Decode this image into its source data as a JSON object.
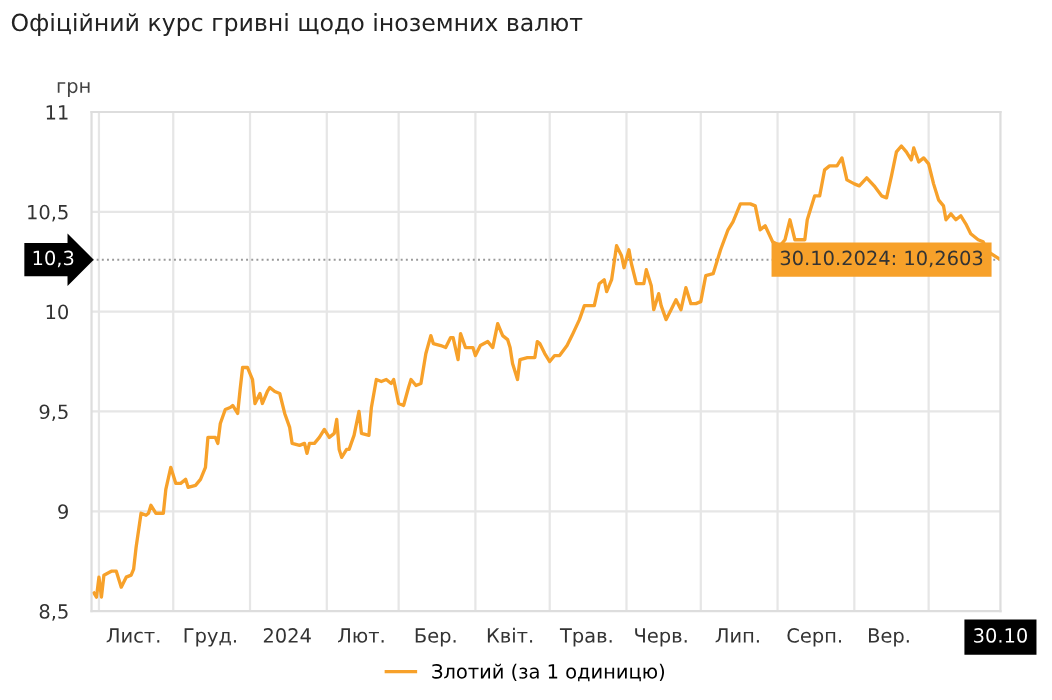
{
  "chart_data": {
    "type": "line",
    "title": "Офіційний курс гривні щодо іноземних валют",
    "ylabel": "грн",
    "x": [
      "2023-10-30",
      "2023-10-31",
      "2023-11-01",
      "2023-11-02",
      "2023-11-03",
      "2023-11-06",
      "2023-11-08",
      "2023-11-10",
      "2023-11-12",
      "2023-11-14",
      "2023-11-15",
      "2023-11-16",
      "2023-11-18",
      "2023-11-20",
      "2023-11-21",
      "2023-11-22",
      "2023-11-24",
      "2023-11-27",
      "2023-11-28",
      "2023-11-30",
      "2023-12-02",
      "2023-12-04",
      "2023-12-06",
      "2023-12-07",
      "2023-12-10",
      "2023-12-12",
      "2023-12-14",
      "2023-12-15",
      "2023-12-18",
      "2023-12-19",
      "2023-12-20",
      "2023-12-22",
      "2023-12-24",
      "2023-12-25",
      "2023-12-27",
      "2023-12-28",
      "2023-12-29",
      "2023-12-31",
      "2024-01-02",
      "2024-01-03",
      "2024-01-05",
      "2024-01-06",
      "2024-01-08",
      "2024-01-09",
      "2024-01-11",
      "2024-01-13",
      "2024-01-15",
      "2024-01-17",
      "2024-01-18",
      "2024-01-21",
      "2024-01-23",
      "2024-01-24",
      "2024-01-25",
      "2024-01-27",
      "2024-01-29",
      "2024-01-31",
      "2024-02-02",
      "2024-02-04",
      "2024-02-05",
      "2024-02-06",
      "2024-02-07",
      "2024-02-09",
      "2024-02-10",
      "2024-02-12",
      "2024-02-14",
      "2024-02-15",
      "2024-02-18",
      "2024-02-19",
      "2024-02-21",
      "2024-02-23",
      "2024-02-25",
      "2024-02-27",
      "2024-02-28",
      "2024-03-01",
      "2024-03-03",
      "2024-03-05",
      "2024-03-06",
      "2024-03-08",
      "2024-03-10",
      "2024-03-12",
      "2024-03-14",
      "2024-03-15",
      "2024-03-18",
      "2024-03-20",
      "2024-03-22",
      "2024-03-23",
      "2024-03-25",
      "2024-03-26",
      "2024-03-28",
      "2024-03-31",
      "2024-04-01",
      "2024-04-03",
      "2024-04-06",
      "2024-04-08",
      "2024-04-10",
      "2024-04-12",
      "2024-04-14",
      "2024-04-15",
      "2024-04-16",
      "2024-04-18",
      "2024-04-19",
      "2024-04-22",
      "2024-04-25",
      "2024-04-26",
      "2024-04-27",
      "2024-04-29",
      "2024-05-01",
      "2024-05-03",
      "2024-05-05",
      "2024-05-08",
      "2024-05-10",
      "2024-05-13",
      "2024-05-15",
      "2024-05-19",
      "2024-05-21",
      "2024-05-23",
      "2024-05-24",
      "2024-05-26",
      "2024-05-28",
      "2024-05-30",
      "2024-05-31",
      "2024-06-02",
      "2024-06-03",
      "2024-06-05",
      "2024-06-08",
      "2024-06-09",
      "2024-06-11",
      "2024-06-12",
      "2024-06-14",
      "2024-06-15",
      "2024-06-17",
      "2024-06-19",
      "2024-06-21",
      "2024-06-23",
      "2024-06-25",
      "2024-06-27",
      "2024-06-29",
      "2024-07-01",
      "2024-07-03",
      "2024-07-06",
      "2024-07-09",
      "2024-07-12",
      "2024-07-14",
      "2024-07-17",
      "2024-07-21",
      "2024-07-23",
      "2024-07-25",
      "2024-07-27",
      "2024-07-30",
      "2024-08-02",
      "2024-08-04",
      "2024-08-06",
      "2024-08-08",
      "2024-08-12",
      "2024-08-13",
      "2024-08-16",
      "2024-08-18",
      "2024-08-20",
      "2024-08-22",
      "2024-08-25",
      "2024-08-27",
      "2024-08-29",
      "2024-09-01",
      "2024-09-03",
      "2024-09-06",
      "2024-09-09",
      "2024-09-12",
      "2024-09-14",
      "2024-09-16",
      "2024-09-18",
      "2024-09-20",
      "2024-09-22",
      "2024-09-24",
      "2024-09-25",
      "2024-09-27",
      "2024-09-29",
      "2024-10-01",
      "2024-10-03",
      "2024-10-05",
      "2024-10-07",
      "2024-10-08",
      "2024-10-10",
      "2024-10-12",
      "2024-10-14",
      "2024-10-16",
      "2024-10-18",
      "2024-10-21",
      "2024-10-23",
      "2024-10-25",
      "2024-10-30"
    ],
    "series": [
      {
        "name": "Злотий (за 1 одиницю)",
        "color": "#f7a12a",
        "values": [
          8.59,
          8.57,
          8.67,
          8.57,
          8.68,
          8.7,
          8.7,
          8.62,
          8.67,
          8.68,
          8.71,
          8.82,
          8.99,
          8.98,
          8.99,
          9.03,
          8.99,
          8.99,
          9.11,
          9.22,
          9.14,
          9.14,
          9.16,
          9.12,
          9.13,
          9.16,
          9.22,
          9.37,
          9.37,
          9.34,
          9.44,
          9.51,
          9.52,
          9.53,
          9.49,
          9.61,
          9.72,
          9.72,
          9.66,
          9.54,
          9.59,
          9.54,
          9.6,
          9.62,
          9.6,
          9.59,
          9.49,
          9.42,
          9.34,
          9.33,
          9.34,
          9.29,
          9.34,
          9.34,
          9.37,
          9.41,
          9.37,
          9.39,
          9.46,
          9.31,
          9.27,
          9.31,
          9.31,
          9.38,
          9.5,
          9.39,
          9.38,
          9.52,
          9.66,
          9.65,
          9.66,
          9.64,
          9.66,
          9.54,
          9.53,
          9.62,
          9.66,
          9.63,
          9.64,
          9.79,
          9.88,
          9.84,
          9.83,
          9.82,
          9.87,
          9.87,
          9.76,
          9.89,
          9.82,
          9.82,
          9.78,
          9.83,
          9.85,
          9.82,
          9.94,
          9.88,
          9.86,
          9.82,
          9.74,
          9.66,
          9.76,
          9.77,
          9.77,
          9.85,
          9.84,
          9.79,
          9.75,
          9.78,
          9.78,
          9.83,
          9.88,
          9.96,
          10.03,
          10.03,
          10.14,
          10.16,
          10.1,
          10.16,
          10.33,
          10.28,
          10.22,
          10.31,
          10.24,
          10.14,
          10.14,
          10.21,
          10.13,
          10.01,
          10.09,
          10.03,
          9.96,
          10.01,
          10.06,
          10.01,
          10.12,
          10.04,
          10.04,
          10.05,
          10.18,
          10.19,
          10.31,
          10.41,
          10.45,
          10.54,
          10.54,
          10.53,
          10.41,
          10.43,
          10.35,
          10.33,
          10.36,
          10.46,
          10.36,
          10.36,
          10.46,
          10.58,
          10.58,
          10.71,
          10.73,
          10.73,
          10.77,
          10.66,
          10.64,
          10.63,
          10.67,
          10.63,
          10.58,
          10.57,
          10.68,
          10.8,
          10.83,
          10.8,
          10.76,
          10.82,
          10.75,
          10.77,
          10.74,
          10.64,
          10.56,
          10.53,
          10.46,
          10.49,
          10.46,
          10.48,
          10.44,
          10.39,
          10.36,
          10.35,
          10.3,
          10.2603
        ]
      }
    ],
    "xlim": [
      "2023-10-29",
      "2024-10-30"
    ],
    "xticks": [
      {
        "value": "2023-11-01",
        "label": null
      },
      {
        "value": "2023-11-15",
        "label": "Лист."
      },
      {
        "value": "2023-12-01",
        "label": null
      },
      {
        "value": "2023-12-16",
        "label": "Груд."
      },
      {
        "value": "2024-01-01",
        "label": null
      },
      {
        "value": "2024-01-16",
        "label": "2024"
      },
      {
        "value": "2024-02-01",
        "label": null
      },
      {
        "value": "2024-02-15",
        "label": "Лют."
      },
      {
        "value": "2024-03-01",
        "label": null
      },
      {
        "value": "2024-03-16",
        "label": "Бер."
      },
      {
        "value": "2024-04-01",
        "label": null
      },
      {
        "value": "2024-04-15",
        "label": "Квіт."
      },
      {
        "value": "2024-05-01",
        "label": null
      },
      {
        "value": "2024-05-16",
        "label": "Трав."
      },
      {
        "value": "2024-06-01",
        "label": null
      },
      {
        "value": "2024-06-15",
        "label": "Черв."
      },
      {
        "value": "2024-07-01",
        "label": null
      },
      {
        "value": "2024-07-16",
        "label": "Лип."
      },
      {
        "value": "2024-08-01",
        "label": null
      },
      {
        "value": "2024-08-16",
        "label": "Серп."
      },
      {
        "value": "2024-09-01",
        "label": null
      },
      {
        "value": "2024-09-15",
        "label": "Вер."
      },
      {
        "value": "2024-10-01",
        "label": null
      },
      {
        "value": "2024-10-30",
        "label": "30.10"
      }
    ],
    "ylim": [
      8.5,
      11
    ],
    "yticks": [
      {
        "value": 8.5,
        "label": "8,5"
      },
      {
        "value": 9,
        "label": "9"
      },
      {
        "value": 9.5,
        "label": "9,5"
      },
      {
        "value": 10,
        "label": "10"
      },
      {
        "value": 10.5,
        "label": "10,5"
      },
      {
        "value": 11,
        "label": "11"
      }
    ],
    "ref_lines": [
      {
        "axis": "y",
        "value": 10.2603,
        "label": "10,3",
        "line_style": "dotted",
        "color": "#999999"
      }
    ],
    "annotations": [
      {
        "text": "30.10.2024: 10,2603",
        "x": "2024-10-30",
        "y": 10.2603
      }
    ],
    "grid": true,
    "legend": "bottom",
    "marker": "none",
    "line_style": "solid"
  }
}
